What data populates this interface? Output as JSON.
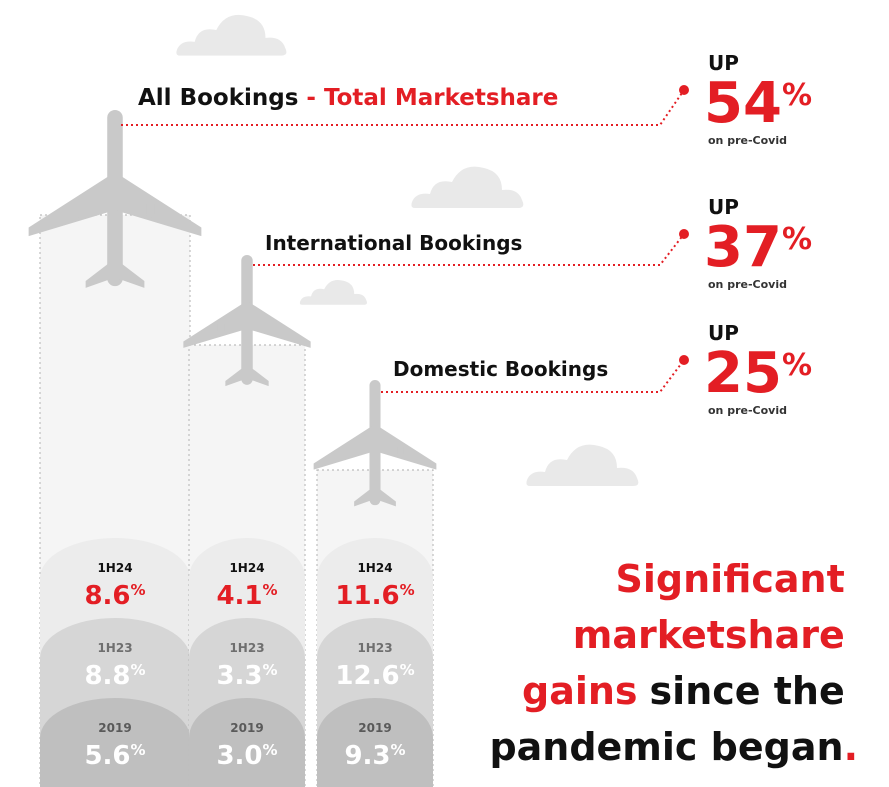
{
  "columns": [
    {
      "title": "All Bookings",
      "subtitle": "- Total Marketshare",
      "change_prefix": "UP",
      "change": "54%",
      "change_note": "on pre-Covid",
      "periods": [
        {
          "label": "1H24",
          "value": "8.6%"
        },
        {
          "label": "1H23",
          "value": "8.8%"
        },
        {
          "label": "2019",
          "value": "5.6%"
        }
      ]
    },
    {
      "title": "International  Bookings",
      "change_prefix": "UP",
      "change": "37%",
      "change_note": "on pre-Covid",
      "periods": [
        {
          "label": "1H24",
          "value": "4.1%"
        },
        {
          "label": "1H23",
          "value": "3.3%"
        },
        {
          "label": "2019",
          "value": "3.0%"
        }
      ]
    },
    {
      "title": "Domestic Bookings",
      "change_prefix": "UP",
      "change": "25%",
      "change_note": "on pre-Covid",
      "periods": [
        {
          "label": "1H24",
          "value": "11.6%"
        },
        {
          "label": "1H23",
          "value": "12.6%"
        },
        {
          "label": "2019",
          "value": "9.3%"
        }
      ]
    }
  ],
  "headline": {
    "lines": [
      [
        "Significant"
      ],
      [
        "marketshare"
      ],
      [
        "gains",
        "since the"
      ],
      [
        "pandemic began",
        "."
      ]
    ]
  }
}
